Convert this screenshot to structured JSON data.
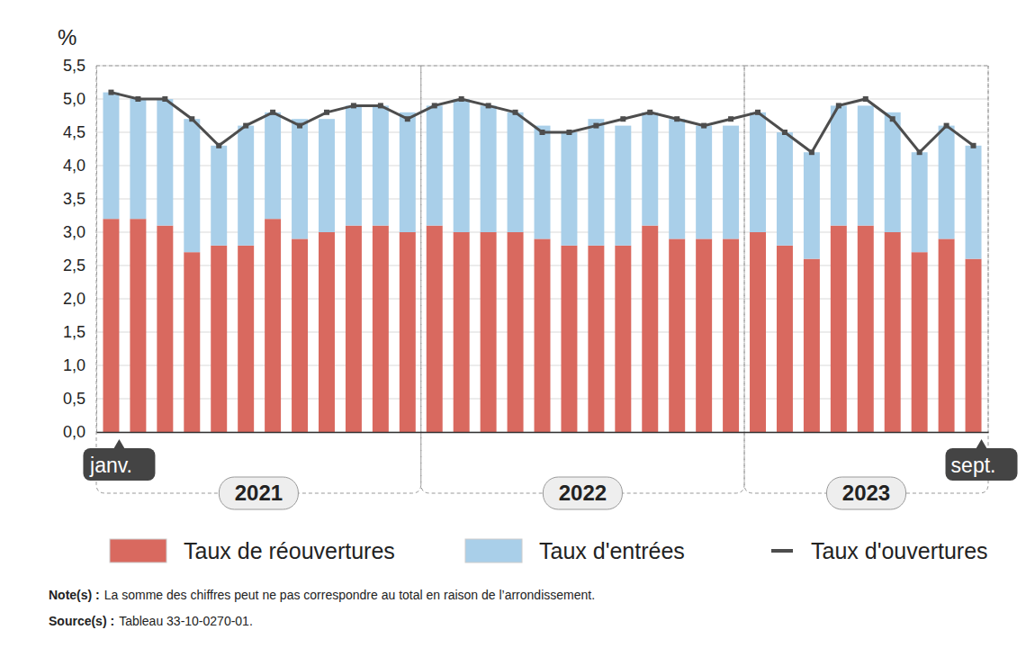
{
  "chart_data": {
    "type": "bar",
    "y_label": "%",
    "categories": [
      "janv.",
      null,
      null,
      null,
      null,
      null,
      null,
      null,
      null,
      null,
      null,
      null,
      null,
      null,
      null,
      null,
      null,
      null,
      null,
      null,
      null,
      null,
      null,
      null,
      null,
      null,
      null,
      null,
      null,
      null,
      null,
      null,
      "sept."
    ],
    "groups": [
      {
        "label": "2021",
        "count": 12
      },
      {
        "label": "2022",
        "count": 12
      },
      {
        "label": "2023",
        "count": 9
      }
    ],
    "series": [
      {
        "name": "Taux de réouvertures",
        "type": "bar",
        "color": "#d9695f",
        "values": [
          3.2,
          3.2,
          3.1,
          2.7,
          2.8,
          2.8,
          3.2,
          2.9,
          3.0,
          3.1,
          3.1,
          3.0,
          3.1,
          3.0,
          3.0,
          3.0,
          2.9,
          2.8,
          2.8,
          2.8,
          3.1,
          2.9,
          2.9,
          2.9,
          3.0,
          2.8,
          2.6,
          3.1,
          3.1,
          3.0,
          2.7,
          2.9,
          2.6
        ]
      },
      {
        "name": "Taux d'entrées",
        "type": "bar",
        "color": "#a9cfe9",
        "values": [
          1.9,
          1.8,
          1.9,
          2.0,
          1.5,
          1.8,
          1.6,
          1.8,
          1.7,
          1.8,
          1.8,
          1.8,
          1.8,
          2.0,
          1.9,
          1.8,
          1.7,
          1.7,
          1.9,
          1.8,
          1.7,
          1.8,
          1.7,
          1.7,
          1.8,
          1.7,
          1.6,
          1.8,
          1.8,
          1.8,
          1.5,
          1.7,
          1.7
        ]
      },
      {
        "name": "Taux d'ouvertures",
        "type": "line",
        "color": "#4d4d4d",
        "marker": "square",
        "values": [
          5.1,
          5.0,
          5.0,
          4.7,
          4.3,
          4.6,
          4.8,
          4.6,
          4.8,
          4.9,
          4.9,
          4.7,
          4.9,
          5.0,
          4.9,
          4.8,
          4.5,
          4.5,
          4.6,
          4.7,
          4.8,
          4.7,
          4.6,
          4.7,
          4.8,
          4.5,
          4.2,
          4.9,
          5.0,
          4.7,
          4.2,
          4.6,
          4.3
        ]
      }
    ],
    "stacked": true,
    "grid": true,
    "legend": "bottom",
    "ylim": [
      0,
      5.5
    ],
    "yticks": [
      {
        "value": 0,
        "label": "0,0"
      },
      {
        "value": 0.5,
        "label": "0,5"
      },
      {
        "value": 1,
        "label": "1,0"
      },
      {
        "value": 1.5,
        "label": "1,5"
      },
      {
        "value": 2,
        "label": "2,0"
      },
      {
        "value": 2.5,
        "label": "2,5"
      },
      {
        "value": 3,
        "label": "3,0"
      },
      {
        "value": 3.5,
        "label": "3,5"
      },
      {
        "value": 4,
        "label": "4,0"
      },
      {
        "value": 4.5,
        "label": "4,5"
      },
      {
        "value": 5,
        "label": "5,0"
      },
      {
        "value": 5.5,
        "label": "5,5"
      }
    ],
    "notes": [
      {
        "label": "Note(s) :",
        "text": "La somme des chiffres peut ne pas correspondre au total en raison de l’arrondissement."
      },
      {
        "label": "Source(s) :",
        "text": "Tableau 33-10-0270-01."
      }
    ]
  }
}
